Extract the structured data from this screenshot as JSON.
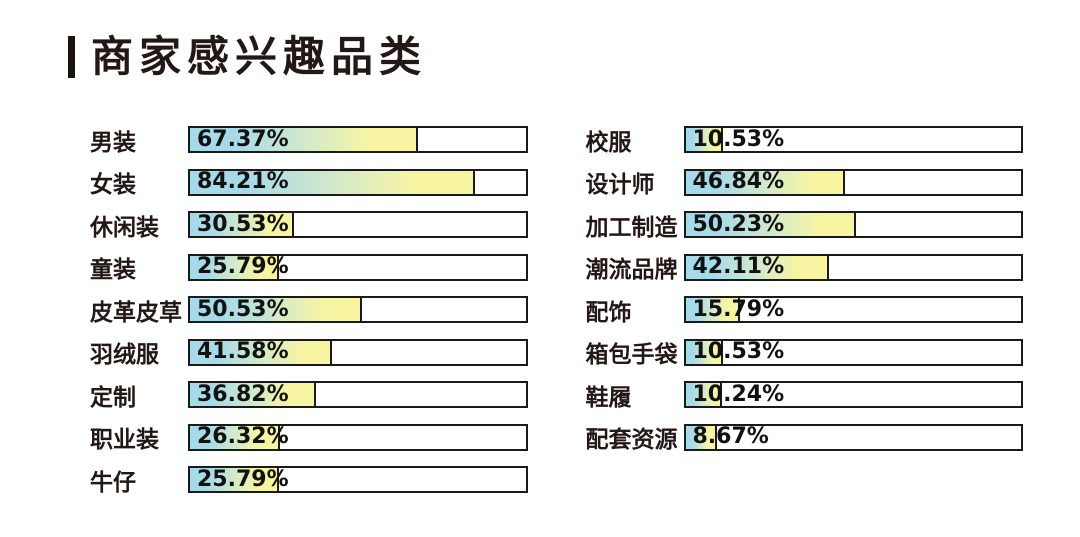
{
  "title": "商家感兴趣品类",
  "chart_data": {
    "type": "bar",
    "orientation": "horizontal",
    "title": "商家感兴趣品类",
    "unit": "percent",
    "value_range": [
      0,
      100
    ],
    "grid": false,
    "legend": "none",
    "columns": [
      {
        "name": "left",
        "items": [
          {
            "label": "男装",
            "value": 67.37,
            "display": "67.37%"
          },
          {
            "label": "女装",
            "value": 84.21,
            "display": "84.21%"
          },
          {
            "label": "休闲装",
            "value": 30.53,
            "display": "30.53%"
          },
          {
            "label": "童装",
            "value": 25.79,
            "display": "25.79%"
          },
          {
            "label": "皮革皮草",
            "value": 50.53,
            "display": "50.53%"
          },
          {
            "label": "羽绒服",
            "value": 41.58,
            "display": "41.58%"
          },
          {
            "label": "定制",
            "value": 36.82,
            "display": "36.82%"
          },
          {
            "label": "职业装",
            "value": 26.32,
            "display": "26.32%"
          },
          {
            "label": "牛仔",
            "value": 25.79,
            "display": "25.79%"
          }
        ]
      },
      {
        "name": "right",
        "items": [
          {
            "label": "校服",
            "value": 10.53,
            "display": "10.53%"
          },
          {
            "label": "设计师",
            "value": 46.84,
            "display": "46.84%"
          },
          {
            "label": "加工制造",
            "value": 50.23,
            "display": "50.23%"
          },
          {
            "label": "潮流品牌",
            "value": 42.11,
            "display": "42.11%"
          },
          {
            "label": "配饰",
            "value": 15.79,
            "display": "15.79%"
          },
          {
            "label": "箱包手袋",
            "value": 10.53,
            "display": "10.53%"
          },
          {
            "label": "鞋履",
            "value": 10.24,
            "display": "10.24%"
          },
          {
            "label": "配套资源",
            "value": 8.67,
            "display": "8.67%"
          }
        ]
      }
    ]
  },
  "colors": {
    "page_bg": "#ffffff",
    "text": "#231815",
    "title_accent": "#1a1310",
    "bar_border": "#1a1a1a",
    "track_bg": "#ffffff",
    "gradient_start": "#a7dae9",
    "gradient_mid": "#d8ebc6",
    "gradient_end": "#f8f5a2"
  }
}
